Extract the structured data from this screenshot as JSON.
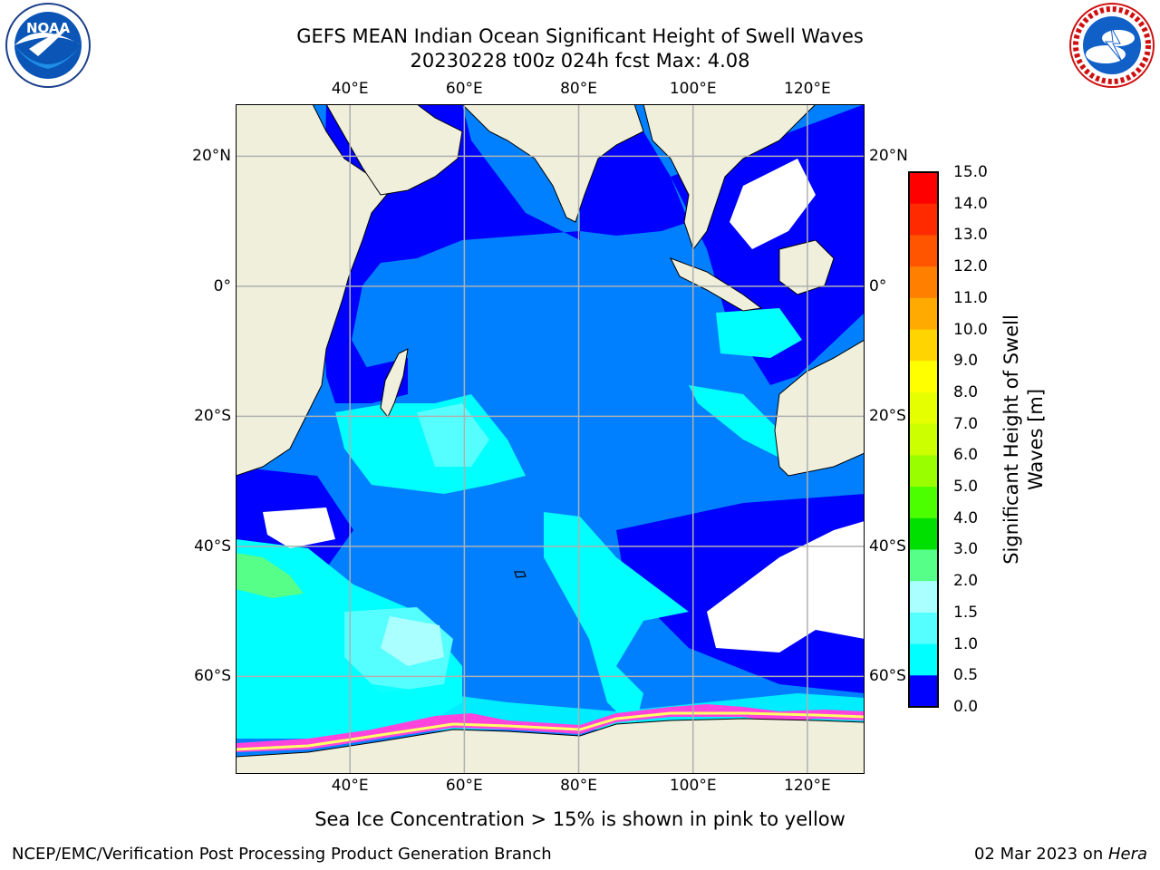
{
  "header": {
    "title_line1": "GEFS MEAN Indian Ocean Significant Height of Swell Waves",
    "title_line2": "20230228 t00z 024h fcst   Max: 4.08"
  },
  "logos": {
    "left": "noaa-logo",
    "left_text": "NOAA",
    "right": "nws-logo"
  },
  "map": {
    "lon_ticks": [
      "40°E",
      "60°E",
      "80°E",
      "100°E",
      "120°E"
    ],
    "lat_ticks": [
      "20°N",
      "0°",
      "20°S",
      "40°S",
      "60°S"
    ],
    "lon_values": [
      40,
      60,
      80,
      100,
      120
    ],
    "lat_values": [
      20,
      0,
      -20,
      -40,
      -60
    ],
    "lon_range": [
      20,
      130
    ],
    "lat_range": [
      -75,
      28
    ],
    "ocean_low_color": "#0000ff",
    "ocean_mid_color": "#0080ff",
    "ocean_high_color": "#00ffff",
    "land_color": "#efefdc",
    "ice_color": "#ff44dd"
  },
  "colorbar": {
    "title_line1": "Significant Height of Swell",
    "title_line2": "Waves [m]",
    "labels": [
      "15.0",
      "14.0",
      "13.0",
      "12.0",
      "11.0",
      "10.0",
      "9.0",
      "8.0",
      "7.0",
      "6.0",
      "5.0",
      "4.0",
      "3.0",
      "2.0",
      "1.5",
      "1.0",
      "0.5",
      "0.0"
    ],
    "colors": [
      "#ff0000",
      "#ff2a00",
      "#ff5500",
      "#ff7f00",
      "#ffaa00",
      "#ffd400",
      "#ffff00",
      "#e5ff00",
      "#ccff00",
      "#99ff00",
      "#4cff00",
      "#00e000",
      "#55ff88",
      "#aaffff",
      "#55ffff",
      "#00ffff",
      "#0080ff",
      "#0000ff"
    ]
  },
  "note": "Sea Ice Concentration > 15% is shown in pink to yellow",
  "footer": {
    "left": "NCEP/EMC/Verification Post Processing Product Generation Branch",
    "right_date": "02 Mar 2023 on ",
    "right_host": "Hera"
  }
}
